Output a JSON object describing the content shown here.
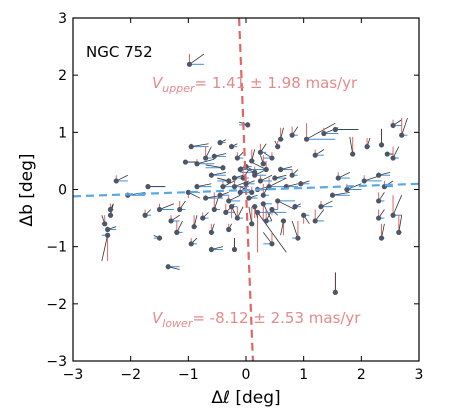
{
  "chart_data": {
    "type": "scatter",
    "title": "NGC 752",
    "xlabel": "Δℓ [deg]",
    "ylabel": "Δb [deg]",
    "xlim": [
      -3,
      3
    ],
    "ylim": [
      -3,
      3
    ],
    "xticks": [
      "−3",
      "−2",
      "−1",
      "0",
      "1",
      "2",
      "3"
    ],
    "yticks": [
      "−3",
      "−2",
      "−1",
      "0",
      "1",
      "2",
      "3"
    ],
    "grid": false,
    "annotations": {
      "upper": {
        "symbol": "V",
        "subscript": "upper",
        "text": "= 1.41 ± 1.98 mas/yr"
      },
      "lower": {
        "symbol": "V",
        "subscript": "lower",
        "text": "= -8.12 ± 2.53 mas/yr"
      }
    },
    "colors": {
      "point": "#4d5566",
      "pm_l_vector": "#3b8fd9",
      "pm_b_vector": "#e06666",
      "total_vector": "#333333",
      "fit_b_line": "#e06666",
      "fit_l_line": "#5aa9e6",
      "annotation": "#e58a8a"
    },
    "fit_lines": {
      "b_axis": {
        "style": "dashed",
        "points": [
          [
            -0.12,
            3.0
          ],
          [
            0.12,
            -3.0
          ]
        ]
      },
      "l_axis": {
        "style": "dashed",
        "points": [
          [
            -3.0,
            -0.12
          ],
          [
            3.0,
            0.1
          ]
        ]
      }
    },
    "points": [
      {
        "x": -0.98,
        "y": 2.19,
        "dx": 0.25,
        "dy": 0.18
      },
      {
        "x": 0.03,
        "y": 1.13,
        "dx": -0.15,
        "dy": 0.05
      },
      {
        "x": 0.6,
        "y": 0.88,
        "dx": 0.05,
        "dy": 0.2
      },
      {
        "x": 0.8,
        "y": 0.95,
        "dx": 0.1,
        "dy": 0.15
      },
      {
        "x": 1.05,
        "y": 0.88,
        "dx": 0.5,
        "dy": 0.28
      },
      {
        "x": 1.35,
        "y": 0.98,
        "dx": 0.25,
        "dy": 0.1
      },
      {
        "x": 1.55,
        "y": 1.05,
        "dx": 0.4,
        "dy": 0.0
      },
      {
        "x": 1.2,
        "y": 0.6,
        "dx": 0.15,
        "dy": 0.1
      },
      {
        "x": 1.85,
        "y": 0.62,
        "dx": -0.05,
        "dy": 0.3
      },
      {
        "x": 2.1,
        "y": 0.75,
        "dx": 0.05,
        "dy": 0.15
      },
      {
        "x": 2.35,
        "y": 0.78,
        "dx": 0.0,
        "dy": 0.28
      },
      {
        "x": 2.55,
        "y": 1.12,
        "dx": 0.15,
        "dy": 0.1
      },
      {
        "x": 2.7,
        "y": 0.95,
        "dx": 0.1,
        "dy": 0.3
      },
      {
        "x": 2.45,
        "y": 0.62,
        "dx": 0.1,
        "dy": 0.0
      },
      {
        "x": -0.95,
        "y": 0.75,
        "dx": 0.3,
        "dy": 0.05
      },
      {
        "x": -0.85,
        "y": 0.45,
        "dx": 0.3,
        "dy": 0.08
      },
      {
        "x": -0.7,
        "y": 0.55,
        "dx": 0.1,
        "dy": 0.2
      },
      {
        "x": -0.55,
        "y": 0.58,
        "dx": 0.2,
        "dy": 0.05
      },
      {
        "x": -1.05,
        "y": 0.48,
        "dx": 0.2,
        "dy": 0.0
      },
      {
        "x": -0.45,
        "y": 0.82,
        "dx": 0.1,
        "dy": 0.05
      },
      {
        "x": -0.4,
        "y": 0.38,
        "dx": -0.3,
        "dy": 0.05
      },
      {
        "x": -0.6,
        "y": 0.25,
        "dx": 0.25,
        "dy": 0.05
      },
      {
        "x": -0.3,
        "y": 0.15,
        "dx": -0.2,
        "dy": 0.05
      },
      {
        "x": -0.2,
        "y": 0.05,
        "dx": 0.25,
        "dy": 0.1
      },
      {
        "x": 0.15,
        "y": 0.25,
        "dx": 0.2,
        "dy": 0.1
      },
      {
        "x": 0.35,
        "y": 0.35,
        "dx": -0.3,
        "dy": 0.15
      },
      {
        "x": 0.5,
        "y": 0.2,
        "dx": 0.2,
        "dy": 0.05
      },
      {
        "x": 0.45,
        "y": 0.55,
        "dx": -0.15,
        "dy": 0.1
      },
      {
        "x": 0.25,
        "y": 0.65,
        "dx": 0.1,
        "dy": 0.15
      },
      {
        "x": 0.1,
        "y": 0.5,
        "dx": 0.05,
        "dy": 0.2
      },
      {
        "x": -0.1,
        "y": 0.35,
        "dx": 0.1,
        "dy": 0.05
      },
      {
        "x": 0.0,
        "y": 0.1,
        "dx": 0.15,
        "dy": 0.05
      },
      {
        "x": 0.2,
        "y": 0.0,
        "dx": 0.2,
        "dy": 0.05
      },
      {
        "x": 0.4,
        "y": 0.05,
        "dx": 0.3,
        "dy": 0.15
      },
      {
        "x": -0.1,
        "y": -0.05,
        "dx": 0.1,
        "dy": 0.1
      },
      {
        "x": 0.05,
        "y": -0.15,
        "dx": 0.15,
        "dy": 0.05
      },
      {
        "x": -0.3,
        "y": -0.2,
        "dx": 0.2,
        "dy": 0.1
      },
      {
        "x": 0.3,
        "y": -0.25,
        "dx": 0.15,
        "dy": -0.3
      },
      {
        "x": 0.55,
        "y": -0.2,
        "dx": 0.3,
        "dy": -0.15
      },
      {
        "x": 0.7,
        "y": 0.05,
        "dx": 0.2,
        "dy": 0.05
      },
      {
        "x": 0.85,
        "y": -0.3,
        "dx": 0.1,
        "dy": 0.05
      },
      {
        "x": 0.65,
        "y": -0.55,
        "dx": -0.05,
        "dy": -0.25
      },
      {
        "x": 0.35,
        "y": -0.55,
        "dx": 0.1,
        "dy": 0.2
      },
      {
        "x": 0.2,
        "y": -0.4,
        "dx": 0.5,
        "dy": -0.7
      },
      {
        "x": 0.1,
        "y": -0.6,
        "dx": -0.05,
        "dy": 0.3
      },
      {
        "x": -0.15,
        "y": -0.5,
        "dx": 0.1,
        "dy": 0.2
      },
      {
        "x": -0.35,
        "y": -0.4,
        "dx": 0.15,
        "dy": 0.15
      },
      {
        "x": -0.55,
        "y": -0.35,
        "dx": 0.1,
        "dy": 0.3
      },
      {
        "x": -0.7,
        "y": -0.15,
        "dx": 0.3,
        "dy": 0.05
      },
      {
        "x": -0.85,
        "y": 0.05,
        "dx": 0.25,
        "dy": 0.05
      },
      {
        "x": -1.0,
        "y": -0.05,
        "dx": 0.2,
        "dy": -0.1
      },
      {
        "x": -1.15,
        "y": -0.35,
        "dx": 0.1,
        "dy": 0.15
      },
      {
        "x": -1.3,
        "y": -0.55,
        "dx": 0.15,
        "dy": 0.1
      },
      {
        "x": -1.2,
        "y": -0.75,
        "dx": 0.1,
        "dy": 0.2
      },
      {
        "x": -0.9,
        "y": -0.65,
        "dx": 0.05,
        "dy": 0.2
      },
      {
        "x": -0.75,
        "y": -0.5,
        "dx": 0.1,
        "dy": 0.1
      },
      {
        "x": -0.6,
        "y": -0.75,
        "dx": 0.05,
        "dy": 0.15
      },
      {
        "x": -0.95,
        "y": -0.95,
        "dx": 0.1,
        "dy": 0.1
      },
      {
        "x": -1.5,
        "y": -0.85,
        "dx": -0.1,
        "dy": 0.05
      },
      {
        "x": -1.5,
        "y": -0.35,
        "dx": 0.25,
        "dy": 0.1
      },
      {
        "x": -1.75,
        "y": -0.45,
        "dx": 0.1,
        "dy": 0.1
      },
      {
        "x": -2.05,
        "y": -0.1,
        "dx": 0.3,
        "dy": 0.05
      },
      {
        "x": -2.25,
        "y": 0.15,
        "dx": 0.2,
        "dy": 0.1
      },
      {
        "x": -2.35,
        "y": -0.45,
        "dx": 0.05,
        "dy": 0.2
      },
      {
        "x": -2.45,
        "y": -0.6,
        "dx": -0.05,
        "dy": 0.15
      },
      {
        "x": -2.4,
        "y": -0.7,
        "dx": 0.15,
        "dy": 0.05
      },
      {
        "x": -2.35,
        "y": -0.35,
        "dx": 0.05,
        "dy": 0.1
      },
      {
        "x": -2.4,
        "y": -0.8,
        "dx": -0.1,
        "dy": -0.45
      },
      {
        "x": -1.35,
        "y": -1.35,
        "dx": 0.2,
        "dy": -0.05
      },
      {
        "x": -1.7,
        "y": 0.05,
        "dx": 0.3,
        "dy": 0.0
      },
      {
        "x": -0.6,
        "y": -1.05,
        "dx": 0.2,
        "dy": 0.05
      },
      {
        "x": -0.2,
        "y": -1.05,
        "dx": 0.0,
        "dy": 0.2
      },
      {
        "x": 0.45,
        "y": -0.95,
        "dx": -0.15,
        "dy": 0.2
      },
      {
        "x": 0.9,
        "y": -0.85,
        "dx": -0.1,
        "dy": 0.3
      },
      {
        "x": 1.2,
        "y": -0.55,
        "dx": 0.15,
        "dy": 0.2
      },
      {
        "x": 1.3,
        "y": -0.3,
        "dx": 0.2,
        "dy": 0.1
      },
      {
        "x": 1.5,
        "y": -0.1,
        "dx": 0.3,
        "dy": 0.05
      },
      {
        "x": 1.6,
        "y": 0.2,
        "dx": 0.2,
        "dy": 0.1
      },
      {
        "x": 1.75,
        "y": 0.0,
        "dx": 0.25,
        "dy": 0.1
      },
      {
        "x": 2.05,
        "y": 0.15,
        "dx": 0.3,
        "dy": 0.1
      },
      {
        "x": 2.3,
        "y": 0.25,
        "dx": 0.2,
        "dy": 0.05
      },
      {
        "x": 2.4,
        "y": 0.05,
        "dx": 0.15,
        "dy": 0.1
      },
      {
        "x": 2.3,
        "y": -0.2,
        "dx": 0.1,
        "dy": 0.15
      },
      {
        "x": 2.55,
        "y": -0.45,
        "dx": 0.15,
        "dy": 0.35
      },
      {
        "x": 2.3,
        "y": -0.5,
        "dx": 0.1,
        "dy": 0.15
      },
      {
        "x": 2.35,
        "y": -0.85,
        "dx": 0.05,
        "dy": 0.25
      },
      {
        "x": 2.65,
        "y": -0.75,
        "dx": 0.05,
        "dy": 0.3
      },
      {
        "x": 2.55,
        "y": 0.55,
        "dx": 0.1,
        "dy": 0.2
      },
      {
        "x": 1.55,
        "y": -1.8,
        "dx": 0.0,
        "dy": 0.35
      },
      {
        "x": 0.15,
        "y": 0.3,
        "dx": -0.25,
        "dy": 0.1
      },
      {
        "x": 0.25,
        "y": 0.15,
        "dx": 0.2,
        "dy": 0.1
      },
      {
        "x": -0.05,
        "y": 0.2,
        "dx": 0.1,
        "dy": 0.15
      },
      {
        "x": 0.1,
        "y": -0.05,
        "dx": -0.2,
        "dy": 0.1
      },
      {
        "x": -0.2,
        "y": 0.2,
        "dx": 0.15,
        "dy": 0.05
      },
      {
        "x": 0.3,
        "y": -0.1,
        "dx": 0.1,
        "dy": 0.2
      },
      {
        "x": 0.0,
        "y": 0.4,
        "dx": 0.1,
        "dy": -0.05
      },
      {
        "x": -0.4,
        "y": 0.05,
        "dx": 0.2,
        "dy": 0.1
      },
      {
        "x": 0.6,
        "y": 0.35,
        "dx": 0.2,
        "dy": 0.05
      },
      {
        "x": 0.8,
        "y": 0.25,
        "dx": 0.1,
        "dy": 0.1
      },
      {
        "x": 0.95,
        "y": 0.1,
        "dx": 0.15,
        "dy": 0.05
      },
      {
        "x": -0.25,
        "y": -0.3,
        "dx": 0.1,
        "dy": -0.2
      },
      {
        "x": 0.15,
        "y": -0.3,
        "dx": 0.05,
        "dy": -0.2
      },
      {
        "x": -0.45,
        "y": -0.1,
        "dx": 0.15,
        "dy": 0.05
      },
      {
        "x": 0.45,
        "y": -0.35,
        "dx": 0.1,
        "dy": -0.1
      },
      {
        "x": -0.15,
        "y": 0.55,
        "dx": 0.1,
        "dy": 0.1
      },
      {
        "x": 0.3,
        "y": 0.45,
        "dx": -0.05,
        "dy": 0.15
      },
      {
        "x": 1.0,
        "y": -0.45,
        "dx": 0.1,
        "dy": -0.15
      },
      {
        "x": -0.3,
        "y": -0.7,
        "dx": 0.05,
        "dy": 0.1
      },
      {
        "x": 0.55,
        "y": 0.75,
        "dx": -0.05,
        "dy": 0.1
      },
      {
        "x": -0.25,
        "y": 0.75,
        "dx": 0.1,
        "dy": 0.05
      }
    ]
  }
}
